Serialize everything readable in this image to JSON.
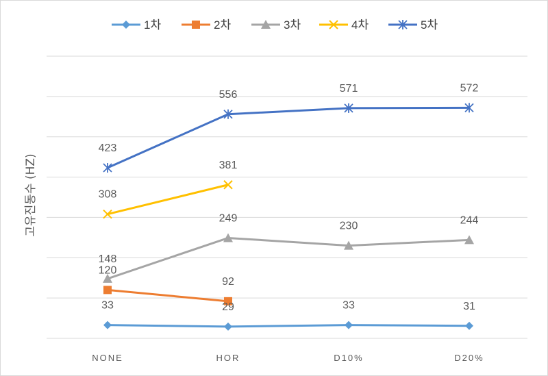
{
  "chart_data": {
    "type": "line",
    "categories": [
      "NONE",
      "HOR",
      "D10%",
      "D20%"
    ],
    "ylabel": "고유진동수 (HZ)",
    "xlabel": "",
    "ylim": [
      0,
      700
    ],
    "grid": true,
    "legend_position": "top",
    "series": [
      {
        "name": "1차",
        "values": [
          33,
          29,
          33,
          31
        ],
        "color": "#5b9bd5",
        "marker": "diamond"
      },
      {
        "name": "2차",
        "values": [
          120,
          92,
          null,
          null
        ],
        "color": "#ed7d31",
        "marker": "square"
      },
      {
        "name": "3차",
        "values": [
          148,
          249,
          230,
          244
        ],
        "color": "#a5a5a5",
        "marker": "triangle"
      },
      {
        "name": "4차",
        "values": [
          308,
          381,
          null,
          null
        ],
        "color": "#ffc000",
        "marker": "x"
      },
      {
        "name": "5차",
        "values": [
          423,
          556,
          571,
          572
        ],
        "color": "#4472c4",
        "marker": "star"
      }
    ]
  }
}
